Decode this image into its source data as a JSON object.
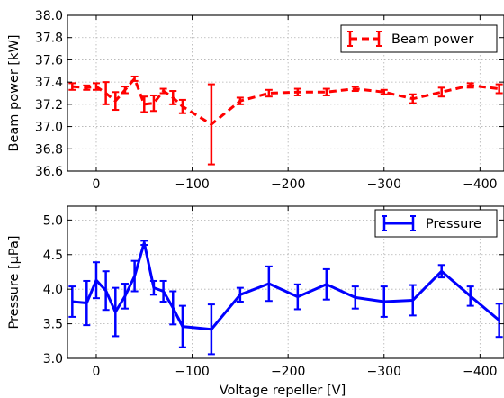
{
  "chart_data": [
    {
      "type": "line",
      "ylabel": "Beam power [kW]",
      "xlim": [
        30,
        -425
      ],
      "ylim": [
        36.6,
        38.0
      ],
      "grid": true,
      "legend_position": "top-right",
      "x_ticks": [
        0,
        -100,
        -200,
        -300,
        -400
      ],
      "x_tick_labels": [
        "0",
        "−100",
        "−200",
        "−300",
        "−400"
      ],
      "y_ticks": [
        36.6,
        36.8,
        37.0,
        37.2,
        37.4,
        37.6,
        37.8,
        38.0
      ],
      "y_tick_labels": [
        "36.6",
        "36.8",
        "37.0",
        "37.2",
        "37.4",
        "37.6",
        "37.8",
        "38.0"
      ],
      "series": [
        {
          "name": "Beam power",
          "color": "#ff0000",
          "line_style": "dashed",
          "x": [
            25,
            10,
            0,
            -10,
            -20,
            -30,
            -40,
            -50,
            -60,
            -70,
            -80,
            -90,
            -120,
            -150,
            -180,
            -210,
            -240,
            -270,
            -300,
            -330,
            -360,
            -390,
            -420
          ],
          "y": [
            37.36,
            37.35,
            37.36,
            37.3,
            37.23,
            37.33,
            37.43,
            37.2,
            37.21,
            37.32,
            37.26,
            37.18,
            37.02,
            37.23,
            37.3,
            37.31,
            37.31,
            37.34,
            37.31,
            37.25,
            37.31,
            37.37,
            37.34
          ],
          "error": [
            0.03,
            0.02,
            0.03,
            0.1,
            0.08,
            0.03,
            0.02,
            0.07,
            0.07,
            0.02,
            0.06,
            0.06,
            0.36,
            0.03,
            0.03,
            0.03,
            0.03,
            0.02,
            0.02,
            0.04,
            0.04,
            0.02,
            0.04
          ]
        }
      ]
    },
    {
      "type": "line",
      "xlabel": "Voltage repeller [V]",
      "ylabel": "Pressure [μPa]",
      "xlim": [
        30,
        -425
      ],
      "ylim": [
        3.0,
        5.2
      ],
      "grid": true,
      "legend_position": "top-right",
      "x_ticks": [
        0,
        -100,
        -200,
        -300,
        -400
      ],
      "x_tick_labels": [
        "0",
        "−100",
        "−200",
        "−300",
        "−400"
      ],
      "y_ticks": [
        3.0,
        3.5,
        4.0,
        4.5,
        5.0
      ],
      "y_tick_labels": [
        "3.0",
        "3.5",
        "4.0",
        "4.5",
        "5.0"
      ],
      "series": [
        {
          "name": "Pressure",
          "color": "#0000ff",
          "line_style": "solid",
          "x": [
            25,
            10,
            0,
            -10,
            -20,
            -30,
            -40,
            -50,
            -60,
            -70,
            -80,
            -90,
            -120,
            -150,
            -180,
            -210,
            -240,
            -270,
            -300,
            -330,
            -360,
            -390,
            -420
          ],
          "y": [
            3.82,
            3.8,
            4.13,
            3.98,
            3.67,
            3.9,
            4.19,
            4.67,
            4.02,
            3.97,
            3.73,
            3.46,
            3.42,
            3.92,
            4.08,
            3.89,
            4.07,
            3.88,
            3.82,
            3.84,
            4.26,
            3.9,
            3.55
          ],
          "error": [
            0.22,
            0.32,
            0.26,
            0.28,
            0.35,
            0.18,
            0.22,
            0.03,
            0.1,
            0.15,
            0.24,
            0.3,
            0.36,
            0.1,
            0.25,
            0.18,
            0.22,
            0.16,
            0.22,
            0.22,
            0.09,
            0.14,
            0.24
          ]
        }
      ]
    }
  ]
}
